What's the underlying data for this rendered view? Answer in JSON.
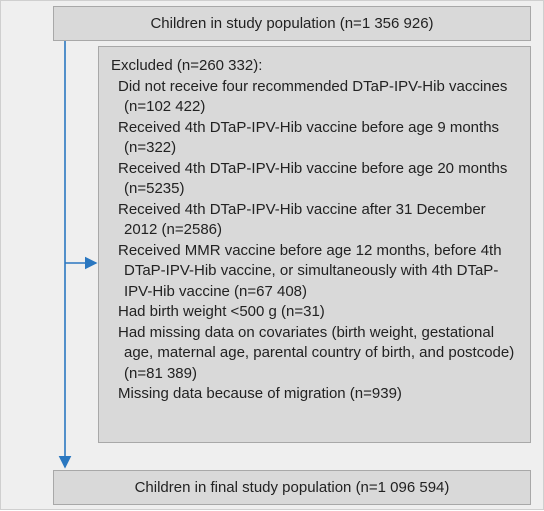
{
  "top_box": {
    "label": "Children in study population (n=1 356 926)"
  },
  "excluded": {
    "heading": "Excluded (n=260 332):",
    "items": [
      "Did not receive four recommended DTaP-IPV-Hib vaccines (n=102 422)",
      "Received 4th DTaP-IPV-Hib vaccine before age 9 months (n=322)",
      "Received 4th DTaP-IPV-Hib vaccine before age 20 months (n=5235)",
      "Received 4th DTaP-IPV-Hib vaccine after 31 December 2012 (n=2586)",
      "Received MMR vaccine before age 12 months, before 4th DTaP-IPV-Hib vaccine, or simultaneously with 4th DTaP-IPV-Hib vaccine (n=67 408)",
      "Had birth weight <500 g (n=31)",
      "Had missing data on covariates (birth weight, gestational age, maternal age, parental country of birth, and postcode) (n=81 389)",
      "Missing data because of migration (n=939)"
    ]
  },
  "bottom_box": {
    "label": "Children in final study population (n=1 096 594)"
  }
}
